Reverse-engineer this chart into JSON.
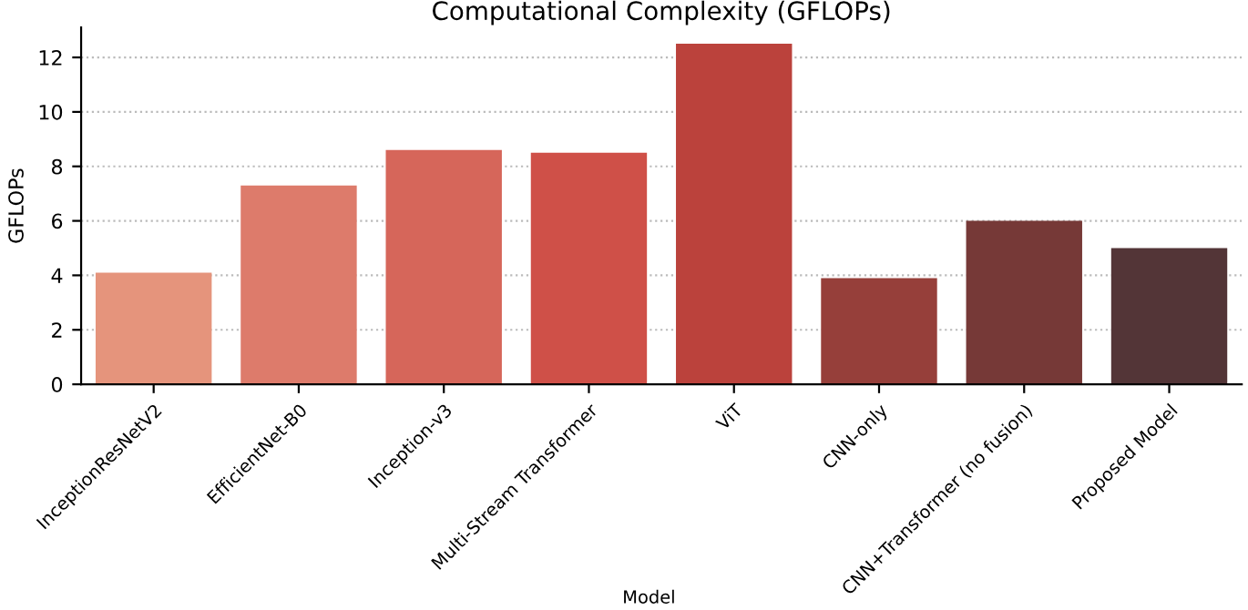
{
  "chart_data": {
    "type": "bar",
    "title": "Computational Complexity (GFLOPs)",
    "xlabel": "Model",
    "ylabel": "GFLOPs",
    "categories": [
      "InceptionResNetV2",
      "EfficientNet-B0",
      "Inception-v3",
      "Multi-Stream Transformer",
      "ViT",
      "CNN-only",
      "CNN+Transformer (no fusion)",
      "Proposed Model"
    ],
    "values": [
      4.1,
      7.3,
      8.6,
      8.5,
      12.5,
      3.9,
      6.0,
      5.0
    ],
    "colors": [
      "#e5947c",
      "#dd7b6b",
      "#d6665a",
      "#cf5048",
      "#bb423c",
      "#963f3a",
      "#763937",
      "#533537"
    ],
    "ylim": [
      0,
      13.1
    ],
    "yticks": [
      0,
      2,
      4,
      6,
      8,
      10,
      12
    ],
    "grid": "y"
  }
}
